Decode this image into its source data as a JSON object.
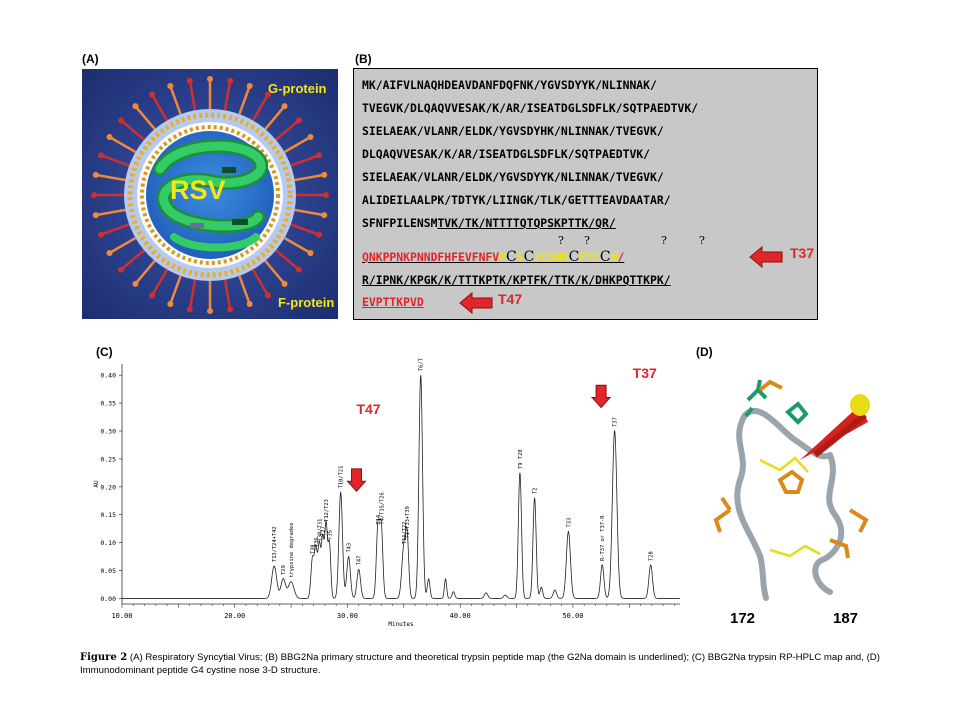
{
  "panels": {
    "a": {
      "label": "(A)",
      "virus": "RSV",
      "g_protein": "G-protein",
      "f_protein": "F-protein"
    },
    "b": {
      "label": "(B)",
      "lines": [
        "MK/AIFVLNAQHDEAVDANFDQFNK/YGVSDYYK/NLINNAK/",
        "TVEGVK/DLQAQVVESAK/K/AR/ISEATDGLSDFLK/SQTPAEDTVK/",
        "SIELAEAK/VLANR/ELDK/YGVSDYHK/NLINNAK/TVEGVK/",
        "DLQAQVVESAK/K/AR/ISEATDGLSDFLK/SQTPAEDTVK/",
        "SIELAEAK/VLANR/ELDK/YGVSDYYK/NLINNAK/TVEGVK/",
        "ALIDEILAALPK/TDTYK/LIINGK/TLK/GETTTEAVDAATAR/"
      ],
      "line7_plain": "SFNFPILENSM",
      "line7_underlined": "TVK/TK/NTTTTQTQPSKPTTK/QR/",
      "question_marks": "?",
      "t37_seq_red": "QNKPPNKPNNDFHFEVFNFV",
      "t37_tail": "/",
      "t37_yellow": [
        "P",
        "S",
        "ICSNN",
        "PTC",
        "W"
      ],
      "cys": "C",
      "line9": "R/IPNK/KPGK/K/TTTKPTK/KPTFK/TTK/K/DHKPQTTKPK/",
      "t47_seq": "EVPTTKPVD",
      "tag_t37": "T37",
      "tag_t47": "T47"
    },
    "c": {
      "label": "(C)"
    },
    "d": {
      "label": "(D)",
      "start": "172",
      "end": "187"
    }
  },
  "caption": {
    "figure_label": "Figure 2",
    "text": "  (A) Respiratory Syncytial Virus; (B) BBG2Na primary structure and theoretical trypsin peptide map (the G2Na domain is underlined); (C) BBG2Na trypsin RP-HPLC map and, (D) Immunodominant peptide G4 cystine nose 3-D structure."
  },
  "chart_data": {
    "type": "line",
    "xlabel": "Minutes",
    "ylabel": "AU",
    "xlim": [
      10,
      59.5
    ],
    "ylim": [
      -0.01,
      0.42
    ],
    "xticks": [
      "10.00",
      "20.00",
      "30.00",
      "40.00",
      "50.00"
    ],
    "yticks": [
      "0.00",
      "0.05",
      "0.10",
      "0.15",
      "0.20",
      "0.25",
      "0.30",
      "0.35",
      "0.40"
    ],
    "baseline": 0.0,
    "peaks": [
      {
        "x": 23.5,
        "y": 0.058,
        "w": 0.22,
        "label": "T13/T24+T42"
      },
      {
        "x": 24.3,
        "y": 0.035,
        "w": 0.2,
        "label": "T29"
      },
      {
        "x": 25.0,
        "y": 0.03,
        "w": 0.25,
        "label": "trypsine degradee"
      },
      {
        "x": 26.9,
        "y": 0.072,
        "w": 0.14,
        "label": "T38"
      },
      {
        "x": 27.2,
        "y": 0.085,
        "w": 0.12,
        "label": "T36"
      },
      {
        "x": 27.5,
        "y": 0.095,
        "w": 0.12,
        "label": "T30/T31"
      },
      {
        "x": 27.8,
        "y": 0.105,
        "w": 0.12,
        "label": "T27"
      },
      {
        "x": 28.1,
        "y": 0.13,
        "w": 0.12,
        "label": "T12/T23"
      },
      {
        "x": 28.4,
        "y": 0.098,
        "w": 0.12,
        "label": "T35"
      },
      {
        "x": 29.4,
        "y": 0.19,
        "w": 0.16,
        "label": "T10/T21"
      },
      {
        "x": 30.1,
        "y": 0.075,
        "w": 0.16,
        "label": "T43"
      },
      {
        "x": 31.0,
        "y": 0.052,
        "w": 0.16,
        "label": "T47"
      },
      {
        "x": 32.7,
        "y": 0.125,
        "w": 0.14,
        "label": "T14"
      },
      {
        "x": 33.0,
        "y": 0.125,
        "w": 0.14,
        "label": "T4/T15/T26"
      },
      {
        "x": 35.0,
        "y": 0.09,
        "w": 0.18,
        "label": "T11/T22"
      },
      {
        "x": 35.3,
        "y": 0.1,
        "w": 0.14,
        "label": "T1+T33+T39"
      },
      {
        "x": 36.5,
        "y": 0.4,
        "w": 0.16,
        "label": "T6/T17/T7/T18"
      },
      {
        "x": 37.2,
        "y": 0.035,
        "w": 0.12,
        "label": ""
      },
      {
        "x": 38.7,
        "y": 0.035,
        "w": 0.1,
        "label": ""
      },
      {
        "x": 39.4,
        "y": 0.012,
        "w": 0.12,
        "label": ""
      },
      {
        "x": 42.3,
        "y": 0.01,
        "w": 0.15,
        "label": ""
      },
      {
        "x": 44.0,
        "y": 0.006,
        "w": 0.15,
        "label": ""
      },
      {
        "x": 45.3,
        "y": 0.225,
        "w": 0.14,
        "label": "T9 T20"
      },
      {
        "x": 46.6,
        "y": 0.18,
        "w": 0.14,
        "label": "T2"
      },
      {
        "x": 47.2,
        "y": 0.02,
        "w": 0.12,
        "label": ""
      },
      {
        "x": 48.4,
        "y": 0.015,
        "w": 0.15,
        "label": ""
      },
      {
        "x": 49.6,
        "y": 0.12,
        "w": 0.18,
        "label": "T33"
      },
      {
        "x": 52.6,
        "y": 0.06,
        "w": 0.15,
        "label": "R-T37 or T37-R"
      },
      {
        "x": 53.7,
        "y": 0.3,
        "w": 0.2,
        "label": "T37"
      },
      {
        "x": 56.9,
        "y": 0.06,
        "w": 0.16,
        "label": "T28"
      }
    ],
    "annotations": [
      {
        "text": "T47",
        "x": 30.8,
        "y": 0.33
      },
      {
        "text": "T37",
        "x": 55.3,
        "y": 0.395
      }
    ],
    "arrows": [
      {
        "x": 30.8,
        "y_top": 0.232,
        "y_bottom": 0.192
      },
      {
        "x": 52.5,
        "y_top": 0.382,
        "y_bottom": 0.342
      }
    ]
  }
}
